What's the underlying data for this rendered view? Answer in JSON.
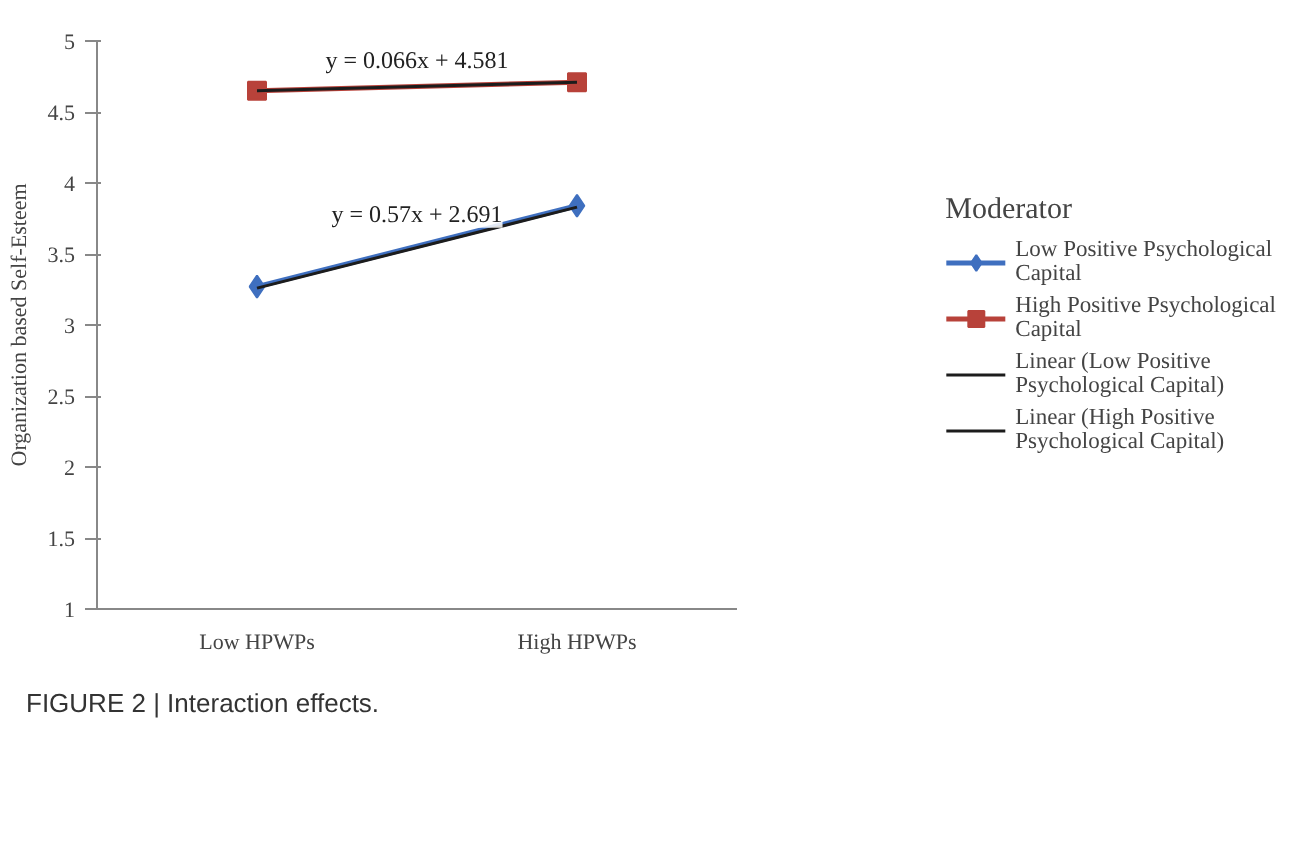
{
  "chart_data": {
    "type": "line",
    "ylabel": "Organization based Self-Esteem",
    "categories": [
      "Low HPWPs",
      "High HPWPs"
    ],
    "ylim": [
      1,
      5
    ],
    "yticks": [
      1,
      1.5,
      2,
      2.5,
      3,
      3.5,
      4,
      4.5,
      5
    ],
    "grid": false,
    "legend": "right",
    "legend_title": "Moderator",
    "series": [
      {
        "name": "Low Positive Psychological Capital",
        "color": "#3f6fbf",
        "marker": "diamond",
        "values": [
          3.27,
          3.84
        ]
      },
      {
        "name": "High Positive Psychological Capital",
        "color": "#b8423a",
        "marker": "square",
        "values": [
          4.65,
          4.71
        ]
      },
      {
        "name": "Linear (Low Positive Psychological Capital)",
        "color": "#1c1c1c",
        "marker": "none",
        "values": [
          3.26,
          3.83
        ]
      },
      {
        "name": "Linear (High Positive Psychological Capital)",
        "color": "#1c1c1c",
        "marker": "none",
        "values": [
          4.65,
          4.71
        ]
      }
    ],
    "annotations": [
      {
        "text": "y = 0.066x + 4.581",
        "y": 4.68
      },
      {
        "text": "y = 0.57x + 2.691",
        "y": 3.6
      },
      "FIGURE 2 | Interaction effects."
    ]
  }
}
